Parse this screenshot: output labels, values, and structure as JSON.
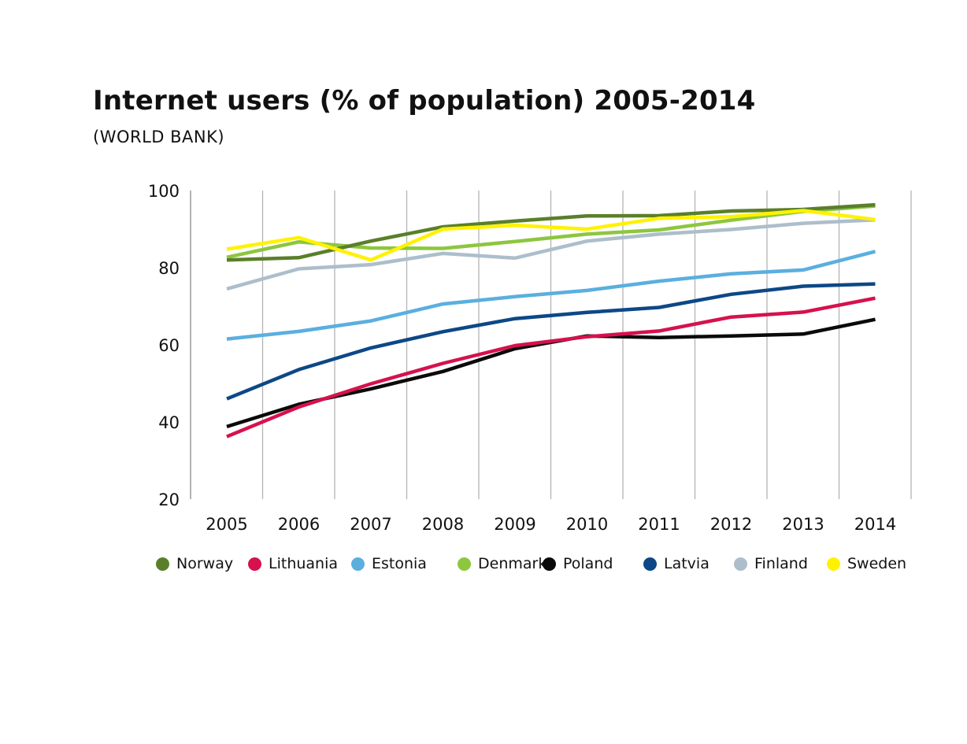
{
  "chart_data": {
    "type": "line",
    "title": "Internet users (% of population) 2005-2014",
    "subtitle": "(WORLD BANK)",
    "x": [
      "2005",
      "2006",
      "2007",
      "2008",
      "2009",
      "2010",
      "2011",
      "2012",
      "2013",
      "2014"
    ],
    "ylim": [
      20,
      100
    ],
    "yticks": [
      "20",
      "40",
      "60",
      "80",
      "100"
    ],
    "grid": "vertical",
    "legend": "bottom",
    "series": [
      {
        "name": "Norway",
        "color": "#5a7f2a",
        "values": [
          82.0,
          82.6,
          86.9,
          90.6,
          92.1,
          93.4,
          93.5,
          94.7,
          95.1,
          96.3
        ]
      },
      {
        "name": "Lithuania",
        "color": "#d6114e",
        "values": [
          36.2,
          43.9,
          49.9,
          55.2,
          59.8,
          62.1,
          63.6,
          67.2,
          68.5,
          72.1
        ]
      },
      {
        "name": "Estonia",
        "color": "#5aafdf",
        "values": [
          61.5,
          63.5,
          66.2,
          70.6,
          72.5,
          74.1,
          76.5,
          78.4,
          79.4,
          84.2
        ]
      },
      {
        "name": "Denmark",
        "color": "#8dc63f",
        "values": [
          82.7,
          86.7,
          85.1,
          85.0,
          86.8,
          88.7,
          89.8,
          92.3,
          94.6,
          96.0
        ]
      },
      {
        "name": "Poland",
        "color": "#0a0a0a",
        "values": [
          38.8,
          44.6,
          48.6,
          53.1,
          59.0,
          62.3,
          61.9,
          62.3,
          62.8,
          66.6
        ]
      },
      {
        "name": "Latvia",
        "color": "#0d4886",
        "values": [
          46.0,
          53.6,
          59.2,
          63.4,
          66.8,
          68.4,
          69.7,
          73.1,
          75.2,
          75.8
        ]
      },
      {
        "name": "Finland",
        "color": "#adbecb",
        "values": [
          74.5,
          79.7,
          80.8,
          83.7,
          82.5,
          86.9,
          88.7,
          89.9,
          91.5,
          92.4
        ]
      },
      {
        "name": "Sweden",
        "color": "#fff200",
        "values": [
          84.8,
          87.8,
          82.0,
          90.0,
          91.0,
          90.0,
          92.8,
          93.2,
          94.8,
          92.5
        ]
      }
    ]
  }
}
